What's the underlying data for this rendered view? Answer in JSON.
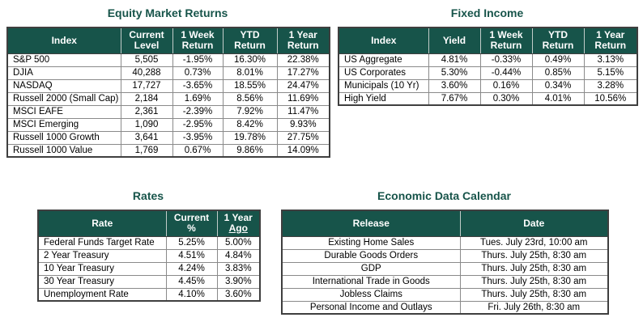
{
  "colors": {
    "header_bg": "#17544A",
    "title_text": "#17544A",
    "header_text": "#FFFFFF",
    "body_text": "#000000",
    "outer_border": "#3F3F3F",
    "grid_border": "#8A8A8A",
    "header_separator": "#C2CCC9"
  },
  "tables": [
    {
      "id": "equity",
      "title": "Equity Market Returns",
      "columns": [
        {
          "lines": [
            {
              "text": "Index"
            }
          ]
        },
        {
          "lines": [
            {
              "text": "Current"
            },
            {
              "text": "Level"
            }
          ]
        },
        {
          "lines": [
            {
              "text": "1 Week"
            },
            {
              "text": "Return"
            }
          ]
        },
        {
          "lines": [
            {
              "text": "YTD"
            },
            {
              "text": "Return"
            }
          ]
        },
        {
          "lines": [
            {
              "text": "1 Year"
            },
            {
              "text": "Return"
            }
          ]
        }
      ],
      "rows": [
        [
          "S&P 500",
          "5,505",
          "-1.95%",
          "16.30%",
          "22.38%"
        ],
        [
          "DJIA",
          "40,288",
          "0.73%",
          "8.01%",
          "17.27%"
        ],
        [
          "NASDAQ",
          "17,727",
          "-3.65%",
          "18.55%",
          "24.47%"
        ],
        [
          "Russell 2000 (Small Cap)",
          "2,184",
          "1.69%",
          "8.56%",
          "11.69%"
        ],
        [
          "MSCI EAFE",
          "2,361",
          "-2.39%",
          "7.92%",
          "11.47%"
        ],
        [
          "MSCI Emerging",
          "1,090",
          "-2.95%",
          "8.42%",
          "9.93%"
        ],
        [
          "Russell 1000 Growth",
          "3,641",
          "-3.95%",
          "19.78%",
          "27.75%"
        ],
        [
          "Russell 1000 Value",
          "1,769",
          "0.67%",
          "9.86%",
          "14.09%"
        ]
      ]
    },
    {
      "id": "fixed-income",
      "title": "Fixed Income",
      "columns": [
        {
          "lines": [
            {
              "text": "Index"
            }
          ]
        },
        {
          "lines": [
            {
              "text": "Yield"
            }
          ]
        },
        {
          "lines": [
            {
              "text": "1 Week"
            },
            {
              "text": "Return"
            }
          ]
        },
        {
          "lines": [
            {
              "text": "YTD"
            },
            {
              "text": "Return"
            }
          ]
        },
        {
          "lines": [
            {
              "text": "1 Year"
            },
            {
              "text": "Return"
            }
          ]
        }
      ],
      "rows": [
        [
          "US Aggregate",
          "4.81%",
          "-0.33%",
          "0.49%",
          "3.13%"
        ],
        [
          "US Corporates",
          "5.30%",
          "-0.44%",
          "0.85%",
          "5.15%"
        ],
        [
          "Municipals (10 Yr)",
          "3.60%",
          "0.16%",
          "0.34%",
          "3.28%"
        ],
        [
          "High Yield",
          "7.67%",
          "0.30%",
          "4.01%",
          "10.56%"
        ]
      ]
    },
    {
      "id": "rates",
      "title": "Rates",
      "columns": [
        {
          "lines": [
            {
              "text": "Rate"
            }
          ]
        },
        {
          "lines": [
            {
              "text": "Current"
            },
            {
              "text": "%"
            }
          ]
        },
        {
          "lines": [
            {
              "text": "1 Year"
            },
            {
              "text": "Ago",
              "underline": true
            }
          ]
        }
      ],
      "rows": [
        [
          "Federal Funds Target Rate",
          "5.25%",
          "5.00%"
        ],
        [
          "2 Year Treasury",
          "4.51%",
          "4.84%"
        ],
        [
          "10 Year Treasury",
          "4.24%",
          "3.83%"
        ],
        [
          "30 Year Treasury",
          "4.45%",
          "3.90%"
        ],
        [
          "Unemployment Rate",
          "4.10%",
          "3.60%"
        ]
      ]
    },
    {
      "id": "econ-calendar",
      "title": "Economic Data Calendar",
      "columns": [
        {
          "lines": [
            {
              "text": "Release"
            }
          ]
        },
        {
          "lines": [
            {
              "text": "Date"
            }
          ]
        }
      ],
      "rows": [
        [
          "Existing Home Sales",
          "Tues. July 23rd, 10:00 am"
        ],
        [
          "Durable Goods Orders",
          "Thurs. July 25th, 8:30 am"
        ],
        [
          "GDP",
          "Thurs. July 25th, 8:30 am"
        ],
        [
          "International Trade in Goods",
          "Thurs. July 25th, 8:30 am"
        ],
        [
          "Jobless Claims",
          "Thurs. July 25th, 8:30 am"
        ],
        [
          "Personal Income and Outlays",
          "Fri. July 26th, 8:30 am"
        ]
      ]
    }
  ]
}
